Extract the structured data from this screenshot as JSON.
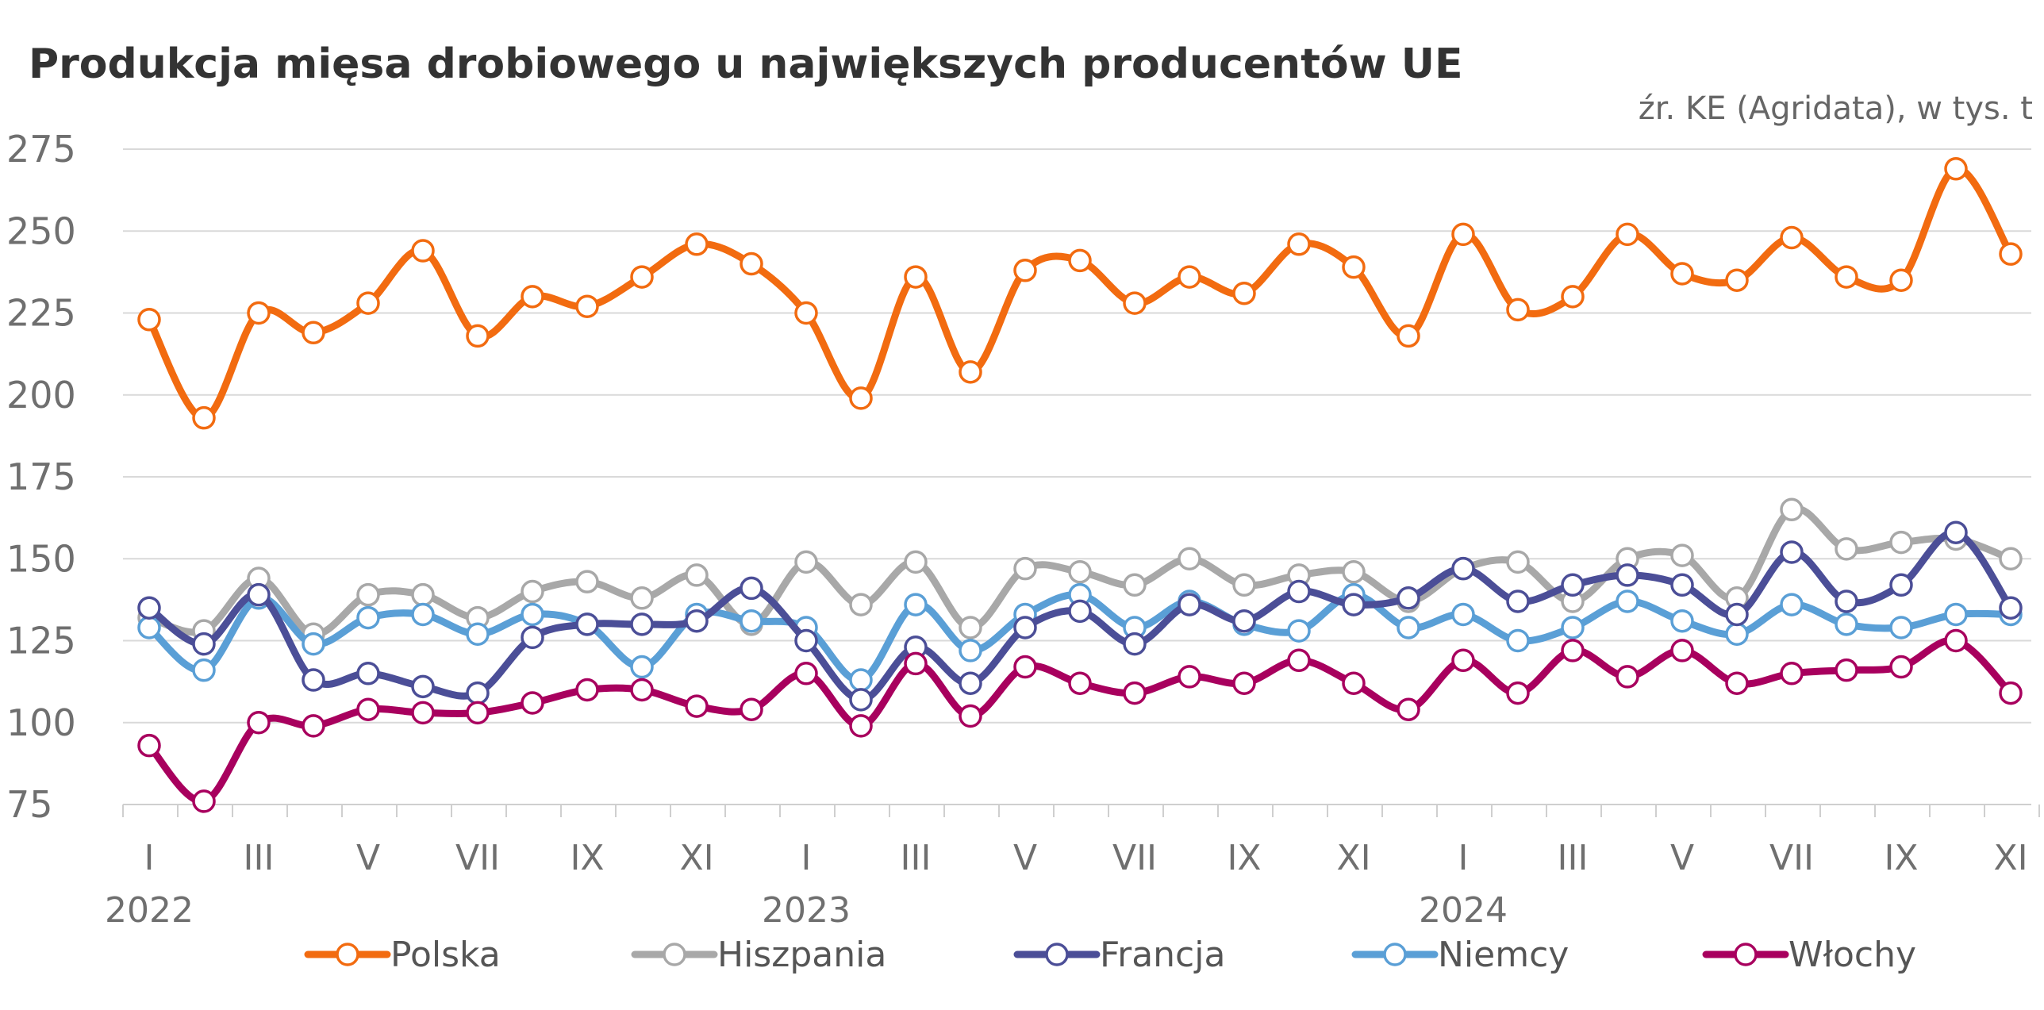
{
  "chart_data": {
    "type": "line",
    "title": "Produkcja mięsa drobiowego u największych producentów UE",
    "source_note": "źr. KE (Agridata), w tys. t",
    "xlabel": "",
    "ylabel": "",
    "ylim": [
      75,
      275
    ],
    "y_ticks": [
      "275",
      "250",
      "225",
      "200",
      "175",
      "150",
      "125",
      "100",
      "75"
    ],
    "x_month_labels": [
      "I",
      "III",
      "V",
      "VII",
      "IX",
      "XI",
      "I",
      "III",
      "V",
      "VII",
      "IX",
      "XI",
      "I",
      "III",
      "V",
      "VII",
      "IX",
      "XI"
    ],
    "x_year_labels": [
      "2022",
      "2023",
      "2024"
    ],
    "grid": true,
    "legend_position": "bottom",
    "categories": [
      "2022-01",
      "2022-02",
      "2022-03",
      "2022-04",
      "2022-05",
      "2022-06",
      "2022-07",
      "2022-08",
      "2022-09",
      "2022-10",
      "2022-11",
      "2022-12",
      "2023-01",
      "2023-02",
      "2023-03",
      "2023-04",
      "2023-05",
      "2023-06",
      "2023-07",
      "2023-08",
      "2023-09",
      "2023-10",
      "2023-11",
      "2023-12",
      "2024-01",
      "2024-02",
      "2024-03",
      "2024-04",
      "2024-05",
      "2024-06",
      "2024-07",
      "2024-08",
      "2024-09",
      "2024-10",
      "2024-11"
    ],
    "series": [
      {
        "name": "Hiszpania",
        "color": "#a8a8a8",
        "values": [
          132,
          128,
          144,
          127,
          139,
          139,
          132,
          140,
          143,
          138,
          145,
          130,
          149,
          136,
          149,
          129,
          147,
          146,
          142,
          150,
          142,
          145,
          146,
          137,
          147,
          149,
          137,
          150,
          151,
          138,
          165,
          153,
          155,
          156,
          150
        ]
      },
      {
        "name": "Niemcy",
        "color": "#5a9fd6",
        "values": [
          129,
          116,
          138,
          124,
          132,
          133,
          127,
          133,
          130,
          117,
          133,
          131,
          129,
          113,
          136,
          122,
          133,
          139,
          129,
          137,
          130,
          128,
          139,
          129,
          133,
          125,
          129,
          137,
          131,
          127,
          136,
          130,
          129,
          133,
          133
        ]
      },
      {
        "name": "Francja",
        "color": "#4b4e97",
        "values": [
          135,
          124,
          139,
          113,
          115,
          111,
          109,
          126,
          130,
          130,
          131,
          141,
          125,
          107,
          123,
          112,
          129,
          134,
          124,
          136,
          131,
          140,
          136,
          138,
          147,
          137,
          142,
          145,
          142,
          133,
          152,
          137,
          142,
          158,
          135
        ]
      },
      {
        "name": "Włochy",
        "color": "#a8005e",
        "values": [
          93,
          76,
          100,
          99,
          104,
          103,
          103,
          106,
          110,
          110,
          105,
          104,
          115,
          99,
          118,
          102,
          117,
          112,
          109,
          114,
          112,
          119,
          112,
          104,
          119,
          109,
          122,
          114,
          122,
          112,
          115,
          116,
          117,
          125,
          109
        ]
      },
      {
        "name": "Polska",
        "color": "#f26b10",
        "values": [
          223,
          193,
          225,
          219,
          228,
          244,
          218,
          230,
          227,
          236,
          246,
          240,
          225,
          199,
          236,
          207,
          238,
          241,
          228,
          236,
          231,
          246,
          239,
          218,
          249,
          226,
          230,
          249,
          237,
          235,
          248,
          236,
          235,
          269,
          243
        ]
      }
    ],
    "legend_order": [
      "Polska",
      "Hiszpania",
      "Francja",
      "Niemcy",
      "Włochy"
    ]
  }
}
